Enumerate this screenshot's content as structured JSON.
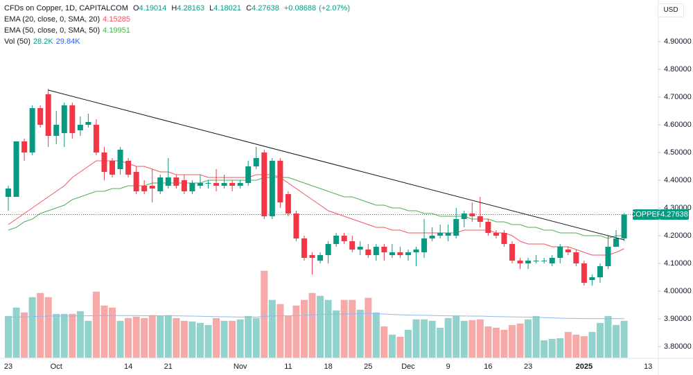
{
  "chart_data": {
    "type": "candlestick",
    "title": "CFDs on Copper, 1D, CAPITALCOM",
    "currency": "USD",
    "symbol": "COPPER",
    "ohlc_letters": [
      "O",
      "H",
      "L",
      "C"
    ],
    "change": {
      "value": 0.08688,
      "label": "+0.08688"
    },
    "change_pct": {
      "value": 2.07,
      "label": "(+2.07%)"
    },
    "up_color": "#089981",
    "down_color": "#f23645",
    "grid": false,
    "categories": [
      "23",
      null,
      null,
      null,
      null,
      null,
      "Oct",
      null,
      null,
      null,
      null,
      null,
      null,
      null,
      null,
      "14",
      null,
      null,
      null,
      null,
      "21",
      null,
      null,
      null,
      null,
      null,
      null,
      null,
      null,
      "Nov",
      null,
      null,
      null,
      null,
      null,
      "11",
      null,
      null,
      null,
      null,
      "18",
      null,
      null,
      null,
      null,
      "25",
      null,
      null,
      null,
      null,
      "Dec",
      null,
      null,
      null,
      null,
      "9",
      null,
      null,
      null,
      null,
      "16",
      null,
      null,
      null,
      null,
      "23",
      null,
      null,
      null,
      null,
      null,
      null,
      "2025",
      null,
      null,
      null,
      null,
      null,
      null,
      null,
      "13"
    ],
    "open": [
      4.34,
      4.34,
      4.54,
      4.5,
      4.66,
      4.71,
      4.56,
      4.57,
      4.67,
      4.58,
      4.6,
      4.6,
      4.5,
      4.47,
      4.44,
      4.47,
      4.43,
      4.38,
      4.38,
      4.36,
      4.38,
      4.41,
      4.4,
      4.36,
      4.38,
      4.39,
      4.39,
      4.38,
      4.39,
      4.38,
      4.39,
      4.45,
      4.5,
      4.27,
      4.47,
      4.35,
      4.28,
      4.19,
      4.13,
      4.11,
      4.13,
      4.17,
      4.2,
      4.18,
      4.15,
      4.15,
      4.13,
      4.16,
      4.13,
      4.14,
      4.13,
      4.14,
      4.14,
      4.19,
      4.2,
      4.2,
      4.2,
      4.26,
      4.28,
      4.27,
      4.25,
      4.21,
      4.21,
      4.17,
      4.11,
      4.1,
      4.11,
      4.11,
      4.1,
      4.12,
      4.15,
      4.14,
      4.1,
      4.04,
      4.05,
      4.09,
      4.16,
      4.19014,
      null,
      null,
      null
    ],
    "high": [
      4.38,
      4.54,
      4.55,
      4.67,
      4.67,
      4.73,
      4.65,
      4.68,
      4.68,
      4.63,
      4.64,
      4.62,
      4.52,
      4.48,
      4.52,
      4.48,
      4.45,
      4.4,
      4.44,
      4.42,
      4.48,
      4.42,
      4.42,
      4.4,
      4.42,
      4.4,
      4.44,
      4.42,
      4.4,
      4.4,
      4.47,
      4.52,
      4.51,
      4.48,
      4.48,
      4.36,
      4.29,
      4.2,
      4.14,
      4.14,
      4.18,
      4.21,
      4.21,
      4.2,
      4.18,
      4.17,
      4.17,
      4.17,
      4.17,
      4.16,
      4.15,
      4.16,
      4.26,
      4.23,
      4.24,
      4.24,
      4.3,
      4.29,
      4.32,
      4.34,
      4.26,
      4.22,
      4.22,
      4.18,
      4.12,
      4.12,
      4.13,
      4.12,
      4.13,
      4.17,
      4.16,
      4.15,
      4.11,
      4.06,
      4.1,
      4.2,
      4.22,
      4.28163,
      null,
      null,
      null
    ],
    "low": [
      4.29,
      4.34,
      4.47,
      4.49,
      4.59,
      4.52,
      4.53,
      4.52,
      4.55,
      4.56,
      4.59,
      4.49,
      4.4,
      4.41,
      4.42,
      4.41,
      4.35,
      4.35,
      4.32,
      4.35,
      4.37,
      4.37,
      4.35,
      4.35,
      4.37,
      4.37,
      4.36,
      4.37,
      4.36,
      4.37,
      4.38,
      4.44,
      4.26,
      4.26,
      4.3,
      4.27,
      4.18,
      4.11,
      4.06,
      4.1,
      4.1,
      4.16,
      4.17,
      4.14,
      4.13,
      4.12,
      4.11,
      4.11,
      4.12,
      4.12,
      4.11,
      4.09,
      4.12,
      4.18,
      4.19,
      4.18,
      4.19,
      4.23,
      4.25,
      4.23,
      4.2,
      4.19,
      4.16,
      4.1,
      4.08,
      4.08,
      4.1,
      4.1,
      4.09,
      4.1,
      4.13,
      4.09,
      4.02,
      4.02,
      4.03,
      4.08,
      4.16,
      4.18021,
      null,
      null,
      null
    ],
    "close": [
      4.37,
      4.54,
      4.5,
      4.66,
      4.6,
      4.56,
      4.6,
      4.67,
      4.57,
      4.6,
      4.61,
      4.5,
      4.43,
      4.42,
      4.51,
      4.42,
      4.36,
      4.36,
      4.37,
      4.41,
      4.41,
      4.38,
      4.36,
      4.39,
      4.39,
      4.39,
      4.38,
      4.39,
      4.38,
      4.39,
      4.45,
      4.48,
      4.27,
      4.47,
      4.32,
      4.28,
      4.19,
      4.12,
      4.12,
      4.13,
      4.17,
      4.2,
      4.18,
      4.15,
      4.16,
      4.13,
      4.16,
      4.14,
      4.14,
      4.13,
      4.14,
      4.15,
      4.19,
      4.2,
      4.21,
      4.21,
      4.26,
      4.28,
      4.27,
      4.25,
      4.21,
      4.2,
      4.17,
      4.11,
      4.1,
      4.11,
      4.11,
      4.11,
      4.12,
      4.16,
      4.14,
      4.1,
      4.03,
      4.05,
      4.09,
      4.16,
      4.19,
      4.27638,
      null,
      null,
      null
    ],
    "ylim": [
      3.76,
      5.03
    ],
    "yticks": [
      {
        "value": 4.9,
        "label": "4.90000"
      },
      {
        "value": 4.8,
        "label": "4.80000"
      },
      {
        "value": 4.7,
        "label": "4.70000"
      },
      {
        "value": 4.6,
        "label": "4.60000"
      },
      {
        "value": 4.5,
        "label": "4.50000"
      },
      {
        "value": 4.4,
        "label": "4.40000"
      },
      {
        "value": 4.3,
        "label": "4.30000"
      },
      {
        "value": 4.2,
        "label": "4.20000"
      },
      {
        "value": 4.1,
        "label": "4.10000"
      },
      {
        "value": 4.0,
        "label": "4.00000"
      },
      {
        "value": 3.9,
        "label": "3.90000"
      },
      {
        "value": 3.8,
        "label": "3.80000"
      }
    ],
    "series": [
      {
        "name": "EMA (20, close, 0, SMA, 20)",
        "color": "#f7525f",
        "values": [
          4.24,
          4.26,
          4.28,
          4.3,
          4.32,
          4.34,
          4.36,
          4.38,
          4.41,
          4.43,
          4.45,
          4.47,
          4.47,
          4.47,
          4.47,
          4.46,
          4.45,
          4.45,
          4.44,
          4.43,
          4.43,
          4.42,
          4.42,
          4.42,
          4.42,
          4.41,
          4.41,
          4.41,
          4.41,
          4.41,
          4.41,
          4.42,
          4.42,
          4.42,
          4.41,
          4.39,
          4.37,
          4.35,
          4.33,
          4.31,
          4.29,
          4.28,
          4.27,
          4.26,
          4.25,
          4.24,
          4.23,
          4.23,
          4.22,
          4.22,
          4.21,
          4.21,
          4.21,
          4.21,
          4.21,
          4.21,
          4.21,
          4.22,
          4.22,
          4.22,
          4.22,
          4.21,
          4.21,
          4.2,
          4.18,
          4.17,
          4.17,
          4.17,
          4.16,
          4.16,
          4.16,
          4.15,
          4.14,
          4.13,
          4.13,
          4.13,
          4.14,
          4.15285,
          null,
          null,
          null
        ]
      },
      {
        "name": "EMA (50, close, 0, SMA, 50)",
        "color": "#4caf50",
        "values": [
          4.22,
          4.23,
          4.25,
          4.26,
          4.28,
          4.29,
          4.3,
          4.31,
          4.33,
          4.34,
          4.35,
          4.36,
          4.36,
          4.37,
          4.37,
          4.38,
          4.38,
          4.38,
          4.39,
          4.39,
          4.39,
          4.39,
          4.39,
          4.39,
          4.39,
          4.4,
          4.4,
          4.4,
          4.4,
          4.4,
          4.4,
          4.4,
          4.41,
          4.41,
          4.41,
          4.41,
          4.4,
          4.39,
          4.38,
          4.37,
          4.36,
          4.35,
          4.34,
          4.34,
          4.33,
          4.32,
          4.31,
          4.31,
          4.3,
          4.3,
          4.29,
          4.29,
          4.28,
          4.28,
          4.27,
          4.27,
          4.27,
          4.27,
          4.26,
          4.26,
          4.26,
          4.25,
          4.25,
          4.24,
          4.24,
          4.23,
          4.23,
          4.22,
          4.22,
          4.21,
          4.21,
          4.21,
          4.2,
          4.2,
          4.2,
          4.19,
          4.2,
          4.19951,
          null,
          null,
          null
        ]
      }
    ],
    "volume": {
      "name": "Vol (50)",
      "last_label": "28.2K",
      "ma_label": "29.84K",
      "vlim": [
        0,
        70
      ],
      "up_color": "#92d2cc",
      "down_color": "#f7a9a7",
      "ma_color": "#91b9ef",
      "label_color": "#2962ff",
      "values": [
        31.9,
        38.3,
        34.6,
        46.3,
        49.5,
        46.3,
        33.5,
        33.5,
        33.5,
        35.6,
        28.2,
        50.5,
        39.9,
        38.3,
        28.2,
        30.3,
        31.4,
        30.3,
        32.5,
        31.9,
        32.5,
        30.3,
        28.2,
        27.7,
        26.6,
        25.0,
        30.3,
        28.2,
        28.2,
        29.3,
        31.9,
        30.3,
        66.5,
        44.2,
        41.0,
        31.9,
        39.9,
        44.2,
        49.5,
        47.3,
        44.2,
        36.2,
        44.2,
        44.2,
        36.7,
        45.8,
        34.6,
        23.9,
        17.6,
        16.0,
        21.3,
        29.3,
        29.3,
        28.2,
        22.9,
        30.3,
        31.9,
        28.2,
        28.7,
        29.3,
        23.9,
        22.9,
        21.3,
        25.0,
        26.1,
        29.3,
        31.9,
        13.3,
        14.4,
        14.9,
        19.7,
        17.6,
        16.5,
        19.7,
        26.6,
        31.9,
        25.0,
        28.2,
        null,
        null,
        null
      ],
      "ma": [
        31.0,
        31.1,
        31.2,
        31.4,
        31.6,
        31.8,
        31.8,
        31.9,
        31.9,
        32.0,
        32.0,
        32.2,
        32.2,
        32.3,
        32.2,
        32.2,
        32.2,
        32.1,
        32.1,
        32.1,
        32.0,
        32.0,
        31.9,
        31.8,
        31.7,
        31.5,
        31.4,
        31.3,
        31.2,
        31.1,
        31.1,
        31.0,
        31.6,
        31.8,
        32.0,
        32.0,
        32.2,
        32.4,
        32.7,
        33.0,
        33.2,
        33.2,
        33.4,
        33.6,
        33.6,
        33.8,
        33.7,
        33.4,
        33.1,
        32.8,
        32.6,
        32.5,
        32.4,
        32.3,
        32.1,
        32.0,
        32.0,
        31.9,
        31.8,
        31.8,
        31.6,
        31.4,
        31.3,
        31.2,
        31.1,
        31.0,
        30.9,
        30.6,
        30.4,
        30.2,
        30.1,
        30.0,
        29.9,
        29.8,
        29.8,
        29.9,
        29.8,
        29.84,
        null,
        null,
        null
      ]
    },
    "trend_line": {
      "color": "#131722",
      "points": [
        [
          5,
          4.725
        ],
        [
          77,
          4.185
        ]
      ]
    }
  }
}
